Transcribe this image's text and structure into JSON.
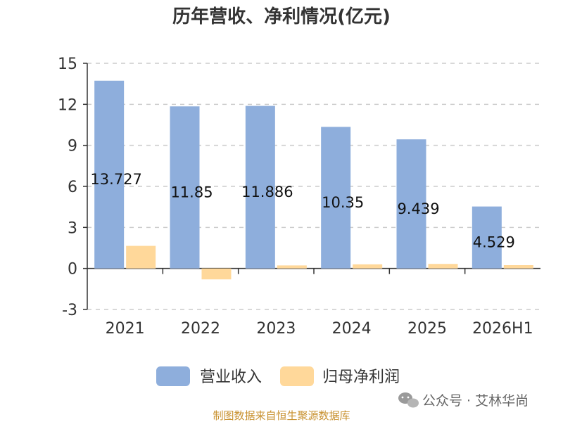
{
  "chart_data": {
    "type": "bar",
    "title": "历年营收、净利情况(亿元)",
    "categories": [
      "2021",
      "2022",
      "2023",
      "2024",
      "2025",
      "2026H1"
    ],
    "series": [
      {
        "name": "营业收入",
        "values": [
          13.727,
          11.85,
          11.886,
          10.35,
          9.439,
          4.529
        ],
        "labels": [
          "13.727",
          "11.85",
          "11.886",
          "10.35",
          "9.439",
          "4.529"
        ],
        "color": "#8eaedc"
      },
      {
        "name": "归母净利润",
        "values": [
          1.65,
          -0.8,
          0.22,
          0.3,
          0.33,
          0.24
        ],
        "color": "#ffd89a"
      }
    ],
    "yticks": [
      "15",
      "12",
      "9",
      "6",
      "3",
      "0",
      "-3"
    ],
    "ylim": [
      -3,
      15
    ],
    "grid": true,
    "legend_position": "bottom"
  },
  "watermark": {
    "text": "公众号 · 艾林华尚",
    "icon": "wechat-icon"
  },
  "source": "制图数据来自恒生聚源数据库"
}
